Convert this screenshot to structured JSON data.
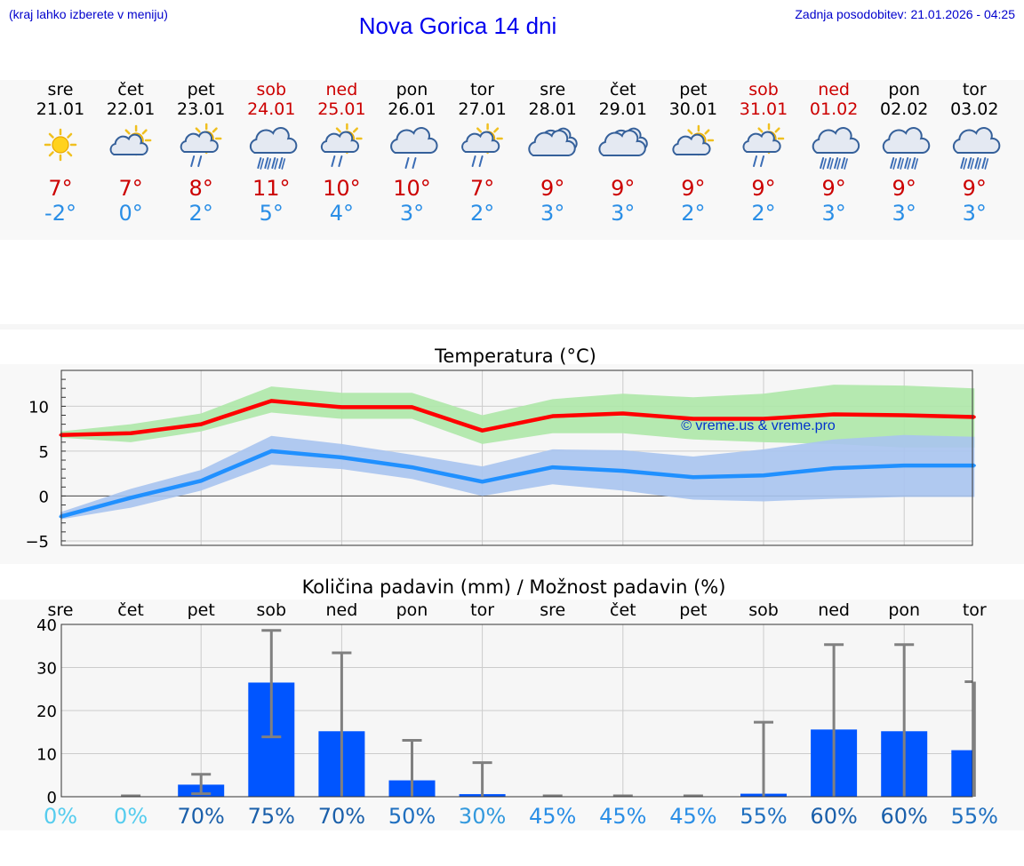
{
  "header": {
    "hint": "(kraj lahko izberete v meniju)",
    "title": "Nova Gorica 14 dni",
    "updated_label": "Zadnja posodobitev:",
    "updated_value": "21.01.2026 - 04:25"
  },
  "colors": {
    "weekday": "#000000",
    "weekend": "#cc0000",
    "tmax": "#cc0000",
    "tmin": "#2a8ee6",
    "rain_bar": "#0055ff",
    "max_line": "#ff0000",
    "min_line": "#2090ff",
    "max_band": "#aee8a8",
    "min_band": "#a8c4f0"
  },
  "days": [
    {
      "dow": "sre",
      "date": "21.01",
      "weekend": false,
      "icon": "sun-icon",
      "tmax": "7°",
      "tmin": "-2°"
    },
    {
      "dow": "čet",
      "date": "22.01",
      "weekend": false,
      "icon": "partly-cloudy-icon",
      "tmax": "7°",
      "tmin": "0°"
    },
    {
      "dow": "pet",
      "date": "23.01",
      "weekend": false,
      "icon": "sun-cloud-rain-icon",
      "tmax": "8°",
      "tmin": "2°"
    },
    {
      "dow": "sob",
      "date": "24.01",
      "weekend": true,
      "icon": "cloud-rain-icon",
      "tmax": "11°",
      "tmin": "5°"
    },
    {
      "dow": "ned",
      "date": "25.01",
      "weekend": true,
      "icon": "sun-cloud-rain-icon",
      "tmax": "10°",
      "tmin": "4°"
    },
    {
      "dow": "pon",
      "date": "26.01",
      "weekend": false,
      "icon": "cloud-light-rain-icon",
      "tmax": "10°",
      "tmin": "3°"
    },
    {
      "dow": "tor",
      "date": "27.01",
      "weekend": false,
      "icon": "sun-cloud-light-rain-icon",
      "tmax": "7°",
      "tmin": "2°"
    },
    {
      "dow": "sre",
      "date": "28.01",
      "weekend": false,
      "icon": "cloudy-icon",
      "tmax": "9°",
      "tmin": "3°"
    },
    {
      "dow": "čet",
      "date": "29.01",
      "weekend": false,
      "icon": "cloudy-icon",
      "tmax": "9°",
      "tmin": "3°"
    },
    {
      "dow": "pet",
      "date": "30.01",
      "weekend": false,
      "icon": "partly-cloudy-icon",
      "tmax": "9°",
      "tmin": "2°"
    },
    {
      "dow": "sob",
      "date": "31.01",
      "weekend": true,
      "icon": "sun-cloud-light-rain-icon",
      "tmax": "9°",
      "tmin": "2°"
    },
    {
      "dow": "ned",
      "date": "01.02",
      "weekend": true,
      "icon": "cloud-rain-icon",
      "tmax": "9°",
      "tmin": "3°"
    },
    {
      "dow": "pon",
      "date": "02.02",
      "weekend": false,
      "icon": "cloud-rain-icon",
      "tmax": "9°",
      "tmin": "3°"
    },
    {
      "dow": "tor",
      "date": "03.02",
      "weekend": false,
      "icon": "cloud-rain-icon",
      "tmax": "9°",
      "tmin": "3°"
    }
  ],
  "chart_data": [
    {
      "type": "line",
      "title": "Temperatura (°C)",
      "xlabel": "",
      "ylabel": "",
      "ylim": [
        -5.5,
        14
      ],
      "yticks": [
        10,
        5,
        0,
        -5
      ],
      "ytick_labels": [
        "10",
        "5",
        "0",
        "−5"
      ],
      "watermark": "© vreme.us & vreme.pro",
      "grid": true,
      "x": [
        0,
        1,
        2,
        3,
        4,
        5,
        6,
        7,
        8,
        9,
        10,
        11,
        12,
        13
      ],
      "series": [
        {
          "name": "max",
          "values": [
            6.8,
            7.0,
            8.0,
            10.6,
            9.9,
            9.9,
            7.3,
            8.9,
            9.2,
            8.6,
            8.6,
            9.1,
            9.0,
            8.8
          ]
        },
        {
          "name": "min",
          "values": [
            -2.3,
            -0.2,
            1.7,
            5.0,
            4.3,
            3.2,
            1.6,
            3.2,
            2.8,
            2.1,
            2.3,
            3.1,
            3.4,
            3.4
          ]
        }
      ],
      "bands": [
        {
          "name": "max range",
          "low": [
            6.5,
            6.0,
            7.2,
            9.3,
            8.6,
            8.6,
            5.8,
            7.0,
            7.0,
            6.3,
            6.0,
            5.8,
            5.4,
            5.4
          ],
          "high": [
            7.2,
            8.0,
            9.2,
            12.2,
            11.5,
            11.5,
            9.0,
            10.8,
            11.4,
            11.0,
            11.4,
            12.4,
            12.3,
            12.0
          ]
        },
        {
          "name": "min range",
          "low": [
            -2.6,
            -1.3,
            0.6,
            3.5,
            3.0,
            1.9,
            0.0,
            1.3,
            0.6,
            -0.4,
            -0.6,
            -0.3,
            -0.1,
            -0.1
          ],
          "high": [
            -1.8,
            0.8,
            2.9,
            6.7,
            5.8,
            4.6,
            3.3,
            5.2,
            5.1,
            4.4,
            5.2,
            6.3,
            6.8,
            6.6
          ]
        }
      ]
    },
    {
      "type": "bar",
      "title": "Količina padavin (mm) / Možnost padavin (%)",
      "ylim": [
        0,
        40
      ],
      "yticks": [
        40,
        30,
        20,
        10,
        0
      ],
      "categories": [
        "sre",
        "čet",
        "pet",
        "sob",
        "ned",
        "pon",
        "tor",
        "sre",
        "čet",
        "pet",
        "sob",
        "ned",
        "pon",
        "tor"
      ],
      "values": [
        0,
        0,
        2.8,
        26.5,
        15.2,
        3.8,
        0.6,
        0,
        0,
        0,
        0.7,
        15.6,
        15.2,
        10.8
      ],
      "range_low": [
        0,
        0,
        0.7,
        13.9,
        0,
        0,
        0,
        0,
        0,
        0,
        0,
        0,
        0,
        0
      ],
      "range_high": [
        0,
        0.2,
        5.2,
        38.6,
        33.4,
        13.1,
        7.9,
        0.2,
        0.2,
        0.2,
        17.3,
        35.3,
        35.3,
        26.7
      ],
      "probabilities": [
        "0%",
        "0%",
        "70%",
        "75%",
        "70%",
        "50%",
        "30%",
        "45%",
        "45%",
        "45%",
        "55%",
        "60%",
        "60%",
        "55%"
      ]
    }
  ]
}
